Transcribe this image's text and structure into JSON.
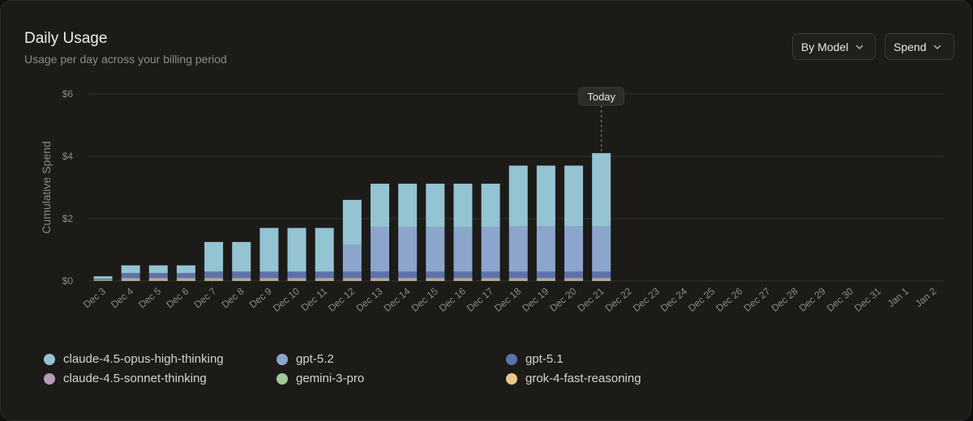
{
  "header": {
    "title": "Daily Usage",
    "subtitle": "Usage per day across your billing period"
  },
  "controls": {
    "group_by": "By Model",
    "metric": "Spend"
  },
  "chart_data": {
    "type": "bar",
    "stacked": true,
    "ylabel": "Cumulative Spend",
    "ylim": [
      0,
      6
    ],
    "yticks": [
      "$0",
      "$2",
      "$4",
      "$6"
    ],
    "ytick_values": [
      0,
      2,
      4,
      6
    ],
    "today_label": "Today",
    "today_category": "Dec 21",
    "categories": [
      "Dec 3",
      "Dec 4",
      "Dec 5",
      "Dec 6",
      "Dec 7",
      "Dec 8",
      "Dec 9",
      "Dec 10",
      "Dec 11",
      "Dec 12",
      "Dec 13",
      "Dec 14",
      "Dec 15",
      "Dec 16",
      "Dec 17",
      "Dec 18",
      "Dec 19",
      "Dec 20",
      "Dec 21",
      "Dec 22",
      "Dec 23",
      "Dec 24",
      "Dec 25",
      "Dec 26",
      "Dec 27",
      "Dec 28",
      "Dec 29",
      "Dec 30",
      "Dec 31",
      "Jan 1",
      "Jan 2"
    ],
    "series": [
      {
        "name": "grok-4-fast-reasoning",
        "color": "#e8c98a",
        "values": [
          0.01,
          0.02,
          0.02,
          0.02,
          0.02,
          0.02,
          0.02,
          0.02,
          0.02,
          0.02,
          0.02,
          0.02,
          0.02,
          0.02,
          0.02,
          0.02,
          0.02,
          0.02,
          0.02,
          null,
          null,
          null,
          null,
          null,
          null,
          null,
          null,
          null,
          null,
          null,
          null
        ]
      },
      {
        "name": "gemini-3-pro",
        "color": "#a3c79a",
        "values": [
          0.01,
          0.02,
          0.02,
          0.02,
          0.02,
          0.02,
          0.02,
          0.02,
          0.02,
          0.02,
          0.02,
          0.02,
          0.02,
          0.02,
          0.02,
          0.02,
          0.02,
          0.02,
          0.02,
          null,
          null,
          null,
          null,
          null,
          null,
          null,
          null,
          null,
          null,
          null,
          null
        ]
      },
      {
        "name": "claude-4.5-sonnet-thinking",
        "color": "#b79ab9",
        "values": [
          0.02,
          0.06,
          0.06,
          0.06,
          0.06,
          0.06,
          0.06,
          0.06,
          0.06,
          0.06,
          0.06,
          0.06,
          0.06,
          0.06,
          0.06,
          0.06,
          0.06,
          0.06,
          0.06,
          null,
          null,
          null,
          null,
          null,
          null,
          null,
          null,
          null,
          null,
          null,
          null
        ]
      },
      {
        "name": "gpt-5.1",
        "color": "#5b73a8",
        "values": [
          0.03,
          0.15,
          0.15,
          0.15,
          0.2,
          0.2,
          0.2,
          0.2,
          0.2,
          0.2,
          0.2,
          0.2,
          0.2,
          0.2,
          0.2,
          0.2,
          0.2,
          0.2,
          0.2,
          null,
          null,
          null,
          null,
          null,
          null,
          null,
          null,
          null,
          null,
          null,
          null
        ]
      },
      {
        "name": "gpt-5.2",
        "color": "#8ca5cc",
        "values": [
          0,
          0,
          0,
          0,
          0,
          0,
          0,
          0,
          0,
          0.85,
          1.42,
          1.42,
          1.42,
          1.42,
          1.42,
          1.45,
          1.45,
          1.45,
          1.45,
          null,
          null,
          null,
          null,
          null,
          null,
          null,
          null,
          null,
          null,
          null,
          null
        ]
      },
      {
        "name": "claude-4.5-opus-high-thinking",
        "color": "#94c3d2",
        "values": [
          0.08,
          0.25,
          0.25,
          0.25,
          0.95,
          0.95,
          1.4,
          1.4,
          1.4,
          1.45,
          1.4,
          1.4,
          1.4,
          1.4,
          1.4,
          1.95,
          1.95,
          1.95,
          2.35,
          null,
          null,
          null,
          null,
          null,
          null,
          null,
          null,
          null,
          null,
          null,
          null
        ]
      }
    ]
  },
  "legend": [
    {
      "name": "claude-4.5-opus-high-thinking",
      "color": "#94c3d2"
    },
    {
      "name": "gpt-5.2",
      "color": "#8ca5cc"
    },
    {
      "name": "gpt-5.1",
      "color": "#5b73a8"
    },
    {
      "name": "claude-4.5-sonnet-thinking",
      "color": "#b79ab9"
    },
    {
      "name": "gemini-3-pro",
      "color": "#a3c79a"
    },
    {
      "name": "grok-4-fast-reasoning",
      "color": "#e8c98a"
    }
  ]
}
